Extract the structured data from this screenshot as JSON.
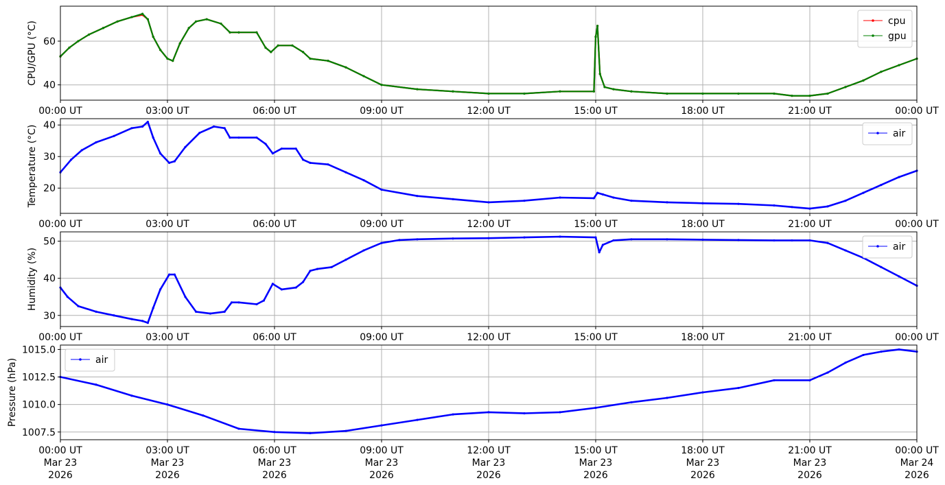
{
  "colors": {
    "cpu": "#ff0000",
    "gpu": "#008000",
    "air": "#0000ff",
    "grid": "#b0b0b0",
    "frame": "#000000"
  },
  "x_axis": {
    "ticks": [
      0,
      3,
      6,
      9,
      12,
      15,
      18,
      21,
      24
    ],
    "tick_labels": [
      "00:00 UT",
      "03:00 UT",
      "06:00 UT",
      "09:00 UT",
      "12:00 UT",
      "15:00 UT",
      "18:00 UT",
      "21:00 UT",
      "00:00 UT"
    ],
    "date_lines": [
      [
        "Mar 23",
        "2026"
      ],
      [
        "Mar 23",
        "2026"
      ],
      [
        "Mar 23",
        "2026"
      ],
      [
        "Mar 23",
        "2026"
      ],
      [
        "Mar 23",
        "2026"
      ],
      [
        "Mar 23",
        "2026"
      ],
      [
        "Mar 23",
        "2026"
      ],
      [
        "Mar 23",
        "2026"
      ],
      [
        "Mar 24",
        "2026"
      ]
    ],
    "range_hours": [
      0,
      24
    ]
  },
  "chart_data": [
    {
      "type": "line",
      "ylabel": "CPU/GPU (°C)",
      "ylim": [
        33,
        76
      ],
      "yticks": [
        40,
        60
      ],
      "ytick_labels": [
        "40",
        "60"
      ],
      "grid": true,
      "legend": "top-right",
      "series": [
        {
          "name": "cpu",
          "color": "cpu",
          "x": [
            0,
            0.25,
            0.5,
            0.8,
            1.2,
            1.6,
            2.0,
            2.3,
            2.45,
            2.6,
            2.8,
            3.0,
            3.15,
            3.35,
            3.6,
            3.8,
            4.1,
            4.5,
            4.75,
            5.0,
            5.5,
            5.75,
            5.9,
            6.1,
            6.5,
            6.8,
            7.0,
            7.5,
            8.0,
            8.5,
            9.0,
            10.0,
            11.0,
            12.0,
            13.0,
            14.0,
            14.95,
            15.0,
            15.05,
            15.12,
            15.25,
            15.5,
            16.0,
            17.0,
            18.0,
            19.0,
            20.0,
            20.5,
            21.0,
            21.5,
            22.0,
            22.5,
            23.0,
            23.5,
            24.0
          ],
          "y": [
            53,
            57,
            60,
            63,
            66,
            69,
            71,
            72,
            70,
            62,
            56,
            52,
            51,
            59,
            66,
            69,
            70,
            68,
            64,
            64,
            64,
            57,
            55,
            58,
            58,
            55,
            52,
            51,
            48,
            44,
            40,
            38,
            37,
            36,
            36,
            37,
            37,
            62,
            67,
            45,
            39,
            38,
            37,
            36,
            36,
            36,
            36,
            35,
            35,
            36,
            39,
            42,
            46,
            49,
            52
          ]
        },
        {
          "name": "gpu",
          "color": "gpu",
          "x": [
            0,
            0.25,
            0.5,
            0.8,
            1.2,
            1.6,
            2.0,
            2.3,
            2.45,
            2.6,
            2.8,
            3.0,
            3.15,
            3.35,
            3.6,
            3.8,
            4.1,
            4.5,
            4.75,
            5.0,
            5.5,
            5.75,
            5.9,
            6.1,
            6.5,
            6.8,
            7.0,
            7.5,
            8.0,
            8.5,
            9.0,
            10.0,
            11.0,
            12.0,
            13.0,
            14.0,
            14.95,
            15.0,
            15.05,
            15.12,
            15.25,
            15.5,
            16.0,
            17.0,
            18.0,
            19.0,
            20.0,
            20.5,
            21.0,
            21.5,
            22.0,
            22.5,
            23.0,
            23.5,
            24.0
          ],
          "y": [
            53,
            57,
            60,
            63,
            66,
            69,
            71,
            72.5,
            70,
            62,
            56,
            52,
            51,
            59,
            66,
            69,
            70,
            68,
            64,
            64,
            64,
            57,
            55,
            58,
            58,
            55,
            52,
            51,
            48,
            44,
            40,
            38,
            37,
            36,
            36,
            37,
            37,
            62,
            67,
            45,
            39,
            38,
            37,
            36,
            36,
            36,
            36,
            35,
            35,
            36,
            39,
            42,
            46,
            49,
            52
          ]
        }
      ]
    },
    {
      "type": "line",
      "ylabel": "Temperature (°C)",
      "ylim": [
        12,
        42
      ],
      "yticks": [
        20,
        30,
        40
      ],
      "ytick_labels": [
        "20",
        "30",
        "40"
      ],
      "grid": true,
      "legend": "top-right",
      "series": [
        {
          "name": "air",
          "color": "air",
          "x": [
            0,
            0.3,
            0.6,
            1.0,
            1.5,
            2.0,
            2.3,
            2.45,
            2.6,
            2.8,
            3.05,
            3.2,
            3.5,
            3.9,
            4.3,
            4.6,
            4.75,
            5.0,
            5.5,
            5.75,
            5.95,
            6.2,
            6.6,
            6.8,
            7.0,
            7.5,
            8.0,
            8.5,
            9.0,
            10.0,
            11.0,
            12.0,
            13.0,
            14.0,
            14.95,
            15.05,
            15.2,
            15.5,
            16.0,
            17.0,
            18.0,
            19.0,
            20.0,
            20.5,
            21.0,
            21.5,
            22.0,
            22.5,
            23.0,
            23.5,
            24.0
          ],
          "y": [
            25,
            29,
            32,
            34.5,
            36.5,
            39,
            39.5,
            41,
            36,
            31,
            28,
            28.5,
            33,
            37.5,
            39.5,
            39,
            36,
            36,
            36,
            34,
            31,
            32.5,
            32.5,
            29,
            28,
            27.5,
            25,
            22.5,
            19.5,
            17.5,
            16.5,
            15.5,
            16,
            17,
            16.8,
            18.5,
            18,
            17,
            16,
            15.5,
            15.2,
            15,
            14.5,
            14,
            13.5,
            14.2,
            16,
            18.5,
            21,
            23.5,
            25.5
          ]
        }
      ]
    },
    {
      "type": "line",
      "ylabel": "Humidity (%)",
      "ylim": [
        27,
        52.5
      ],
      "yticks": [
        30,
        40,
        50
      ],
      "ytick_labels": [
        "30",
        "40",
        "50"
      ],
      "grid": true,
      "legend": "top-right",
      "series": [
        {
          "name": "air",
          "color": "air",
          "x": [
            0,
            0.2,
            0.5,
            1.0,
            1.5,
            2.0,
            2.3,
            2.45,
            2.6,
            2.8,
            3.05,
            3.2,
            3.5,
            3.8,
            4.2,
            4.6,
            4.8,
            5.0,
            5.5,
            5.7,
            5.95,
            6.2,
            6.6,
            6.8,
            7.0,
            7.2,
            7.6,
            8.0,
            8.5,
            9.0,
            9.5,
            10.0,
            11.0,
            12.0,
            13.0,
            14.0,
            15.0,
            15.1,
            15.2,
            15.5,
            16.0,
            17.0,
            18.0,
            19.0,
            20.0,
            20.5,
            21.0,
            21.5,
            22.0,
            22.5,
            23.0,
            23.5,
            24.0
          ],
          "y": [
            37.5,
            35,
            32.5,
            31,
            30,
            29,
            28.5,
            28,
            32,
            37,
            41,
            41,
            35,
            31,
            30.5,
            31,
            33.5,
            33.5,
            33,
            34,
            38.5,
            37,
            37.5,
            39,
            42,
            42.5,
            43,
            45,
            47.5,
            49.5,
            50.3,
            50.5,
            50.7,
            50.8,
            51,
            51.2,
            51,
            47,
            49,
            50.2,
            50.5,
            50.5,
            50.4,
            50.3,
            50.2,
            50.2,
            50.2,
            49.5,
            47.5,
            45.5,
            43,
            40.5,
            38
          ]
        }
      ]
    },
    {
      "type": "line",
      "ylabel": "Pressure (hPa)",
      "ylim": [
        1006.8,
        1015.4
      ],
      "yticks": [
        1007.5,
        1010.0,
        1012.5,
        1015.0
      ],
      "ytick_labels": [
        "1007.5",
        "1010.0",
        "1012.5",
        "1015.0"
      ],
      "grid": true,
      "legend": "top-left",
      "series": [
        {
          "name": "air",
          "color": "air",
          "x": [
            0,
            1.0,
            2.0,
            3.0,
            4.0,
            5.0,
            6.0,
            7.0,
            8.0,
            9.0,
            10.0,
            11.0,
            12.0,
            13.0,
            14.0,
            15.0,
            16.0,
            17.0,
            18.0,
            19.0,
            20.0,
            21.0,
            21.5,
            22.0,
            22.5,
            23.0,
            23.5,
            24.0
          ],
          "y": [
            1012.5,
            1011.8,
            1010.8,
            1010.0,
            1009.0,
            1007.8,
            1007.5,
            1007.4,
            1007.6,
            1008.1,
            1008.6,
            1009.1,
            1009.3,
            1009.2,
            1009.3,
            1009.7,
            1010.2,
            1010.6,
            1011.1,
            1011.5,
            1012.2,
            1012.2,
            1012.9,
            1013.8,
            1014.5,
            1014.8,
            1015.0,
            1014.8
          ]
        }
      ]
    }
  ]
}
